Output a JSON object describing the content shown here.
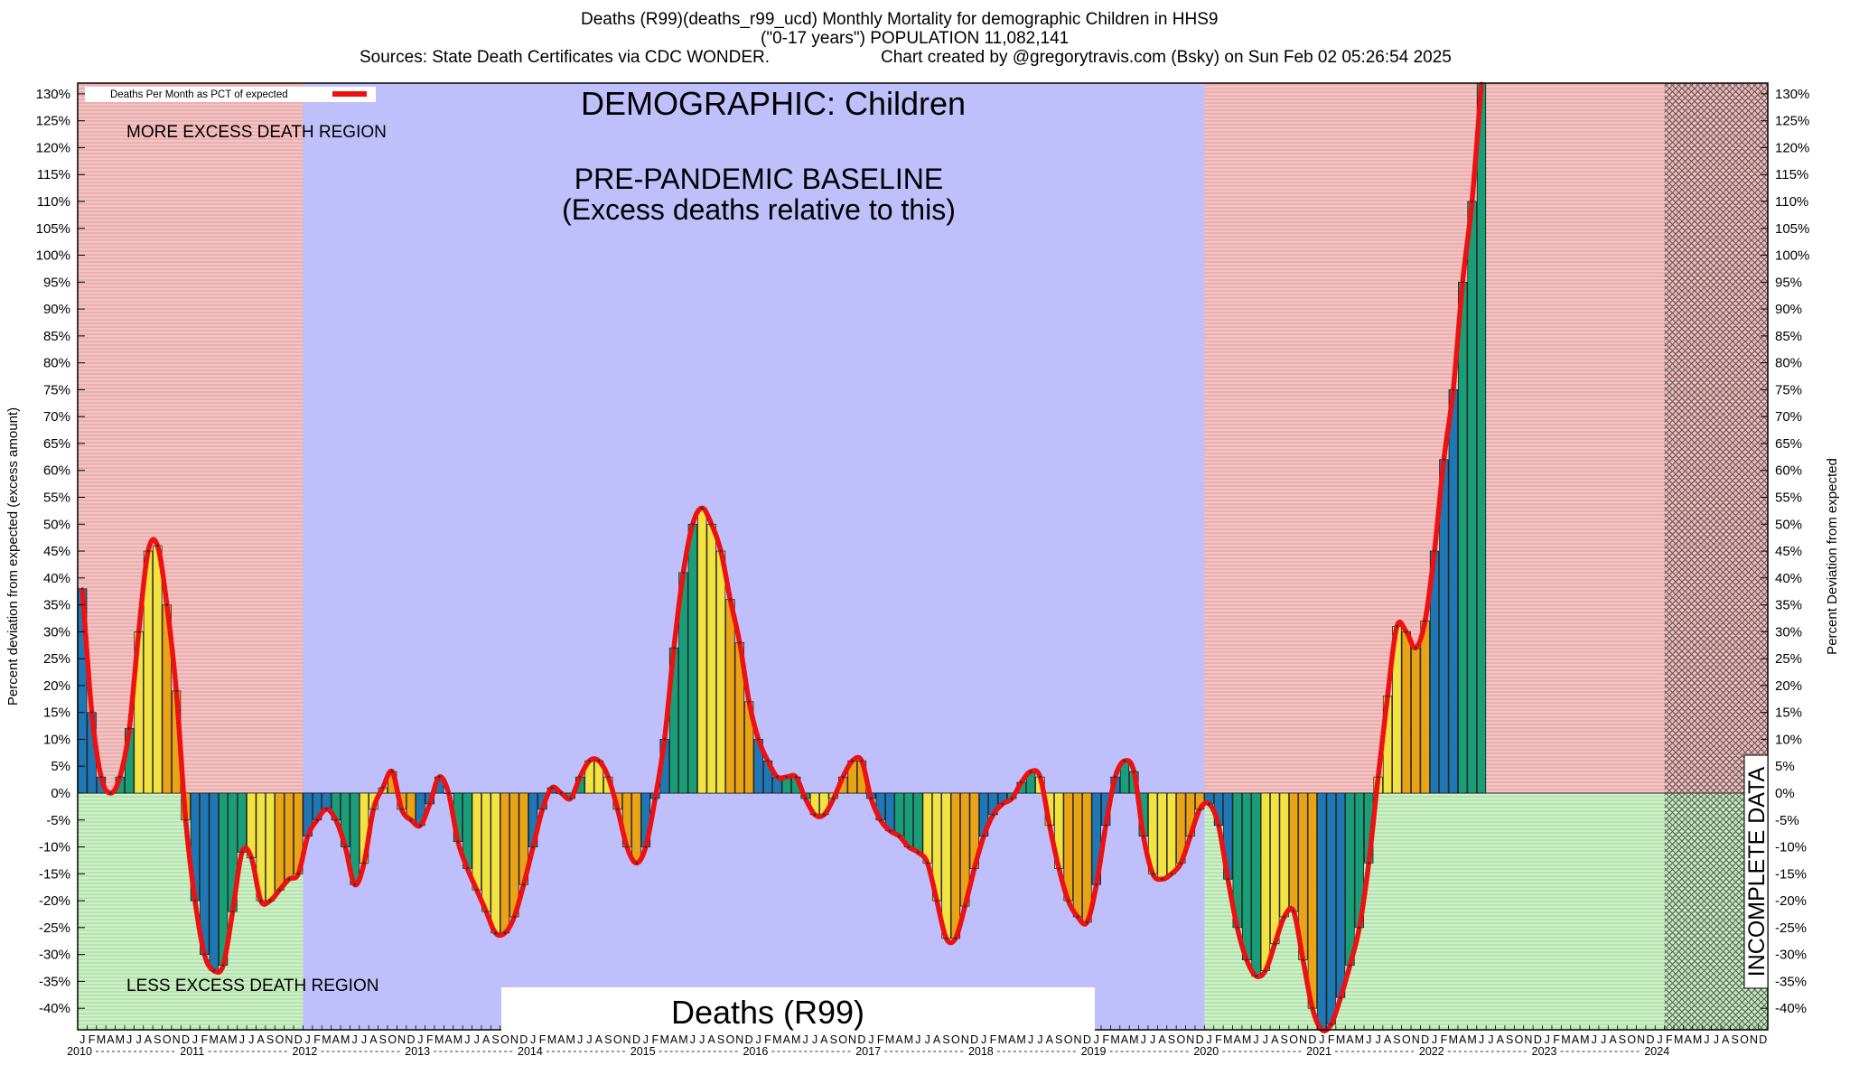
{
  "header": {
    "title_line1": "Deaths (R99)(deaths_r99_ucd) Monthly Mortality for demographic Children in HHS9",
    "title_line2": "(\"0-17 years\") POPULATION 11,082,141",
    "sources": "Sources: State Death Certificates via CDC WONDER.",
    "credit": "Chart created by @gregorytravis.com (Bsky) on Sun Feb 02 05:26:54 2025"
  },
  "colors": {
    "excess_region": "#f3c4c4",
    "less_region": "#cdf0c6",
    "baseline_region": "#bfbffb",
    "line": "#ee1111",
    "bar_colors": [
      "#1f77b4",
      "#1a9e77",
      "#f2e342",
      "#e8a317"
    ],
    "hatch": "#555555"
  },
  "chart_data": {
    "type": "bar",
    "title": "DEMOGRAPHIC: Children",
    "subtitle": "Deaths (R99)",
    "ylabel": "Percent deviation from expected (excess amount)",
    "ylabel_right": "Percent Deviation from expected",
    "ylim": [
      -44,
      132
    ],
    "yticks": [
      -40,
      -35,
      -30,
      -25,
      -20,
      -15,
      -10,
      -5,
      0,
      5,
      10,
      15,
      20,
      25,
      30,
      35,
      40,
      45,
      50,
      55,
      60,
      65,
      70,
      75,
      80,
      85,
      90,
      95,
      100,
      105,
      110,
      115,
      120,
      125,
      130
    ],
    "legend": {
      "label": "Deaths Per Month as PCT of expected",
      "placement": "top-left"
    },
    "annotations": {
      "more_excess": "MORE EXCESS DEATH REGION",
      "less_excess": "LESS EXCESS DEATH REGION",
      "baseline_line1": "PRE-PANDEMIC BASELINE",
      "baseline_line2": "(Excess deaths relative to this)",
      "incomplete": "INCOMPLETE DATA"
    },
    "baseline_range": [
      "2012-01",
      "2019-12"
    ],
    "incomplete_range": [
      "2024-02",
      "2024-12"
    ],
    "month_letters": [
      "J",
      "F",
      "M",
      "A",
      "M",
      "J",
      "J",
      "A",
      "S",
      "O",
      "N",
      "D"
    ],
    "years": [
      "2010",
      "2011",
      "2012",
      "2013",
      "2014",
      "2015",
      "2016",
      "2017",
      "2018",
      "2019",
      "2020",
      "2021",
      "2022",
      "2023",
      "2024"
    ],
    "series": [
      {
        "name": "Deaths Per Month as PCT of expected",
        "values": [
          38,
          15,
          3,
          0,
          3,
          12,
          30,
          45,
          46,
          35,
          19,
          -5,
          -20,
          -30,
          -33,
          -32,
          -22,
          -11,
          -12,
          -20,
          -20,
          -18,
          -16,
          -15,
          -8,
          -5,
          -3,
          -5,
          -10,
          -17,
          -13,
          -3,
          1,
          4,
          -3,
          -5,
          -6,
          -2,
          3,
          0,
          -9,
          -14,
          -18,
          -22,
          -26,
          -26,
          -23,
          -17,
          -10,
          -3,
          1,
          0,
          -1,
          3,
          6,
          6,
          3,
          -3,
          -10,
          -13,
          -10,
          -1,
          10,
          27,
          41,
          50,
          53,
          50,
          45,
          36,
          28,
          17,
          10,
          6,
          3,
          3,
          3,
          -1,
          -4,
          -4,
          -1,
          3,
          6,
          6,
          -1,
          -5,
          -7,
          -8,
          -10,
          -11,
          -13,
          -20,
          -27,
          -27,
          -21,
          -14,
          -8,
          -4,
          -2,
          -1,
          2,
          4,
          3,
          -6,
          -14,
          -20,
          -23,
          -24,
          -17,
          -6,
          3,
          6,
          4,
          -8,
          -15,
          -16,
          -15,
          -13,
          -8,
          -3,
          -2,
          -6,
          -16,
          -25,
          -31,
          -34,
          -33,
          -28,
          -23,
          -22,
          -31,
          -40,
          -44,
          -43,
          -38,
          -32,
          -25,
          -13,
          3,
          18,
          31,
          30,
          27,
          32,
          45,
          62,
          75,
          95,
          110,
          132
        ]
      }
    ]
  }
}
